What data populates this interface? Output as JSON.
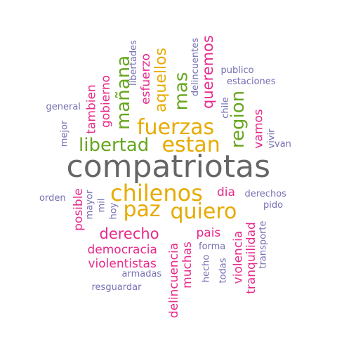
{
  "colors": {
    "gray": "#666666",
    "gold": "#E6AB02",
    "green": "#66A61E",
    "pink": "#E7298A",
    "purple": "#7570B3"
  },
  "words": {
    "compatriotas": "compatriotas",
    "chilenos": "chilenos",
    "paz": "paz",
    "quiero": "quiero",
    "fuerzas": "fuerzas",
    "estan": "estan",
    "libertad": "libertad",
    "region": "region",
    "manana": "mañana",
    "mas": "mas",
    "aquellos": "aquellos",
    "queremos": "queremos",
    "esfuerzo": "esfuerzo",
    "gobierno": "gobierno",
    "tambien": "tambien",
    "derecho": "derecho",
    "democracia": "democracia",
    "violentistas": "violentistas",
    "pais": "pais",
    "dia": "dia",
    "delincuencia": "delincuencia",
    "muchas": "muchas",
    "violencia": "violencia",
    "tranquilidad": "tranquilidad",
    "vamos": "vamos",
    "posible": "posible",
    "libertades": "libertades",
    "delincuentes": "delincuentes",
    "publico": "publico",
    "estaciones": "estaciones",
    "chile": "chile",
    "vivir": "vivir",
    "van": "van",
    "general": "general",
    "mejor": "mejor",
    "orden": "orden",
    "mayor": "mayor",
    "mil": "mil",
    "hoy": "hoy",
    "derechos": "derechos",
    "pido": "pido",
    "forma": "forma",
    "hecho": "hecho",
    "todas": "todas",
    "transporte": "transporte",
    "armadas": "armadas",
    "resguardar": "resguardar"
  }
}
